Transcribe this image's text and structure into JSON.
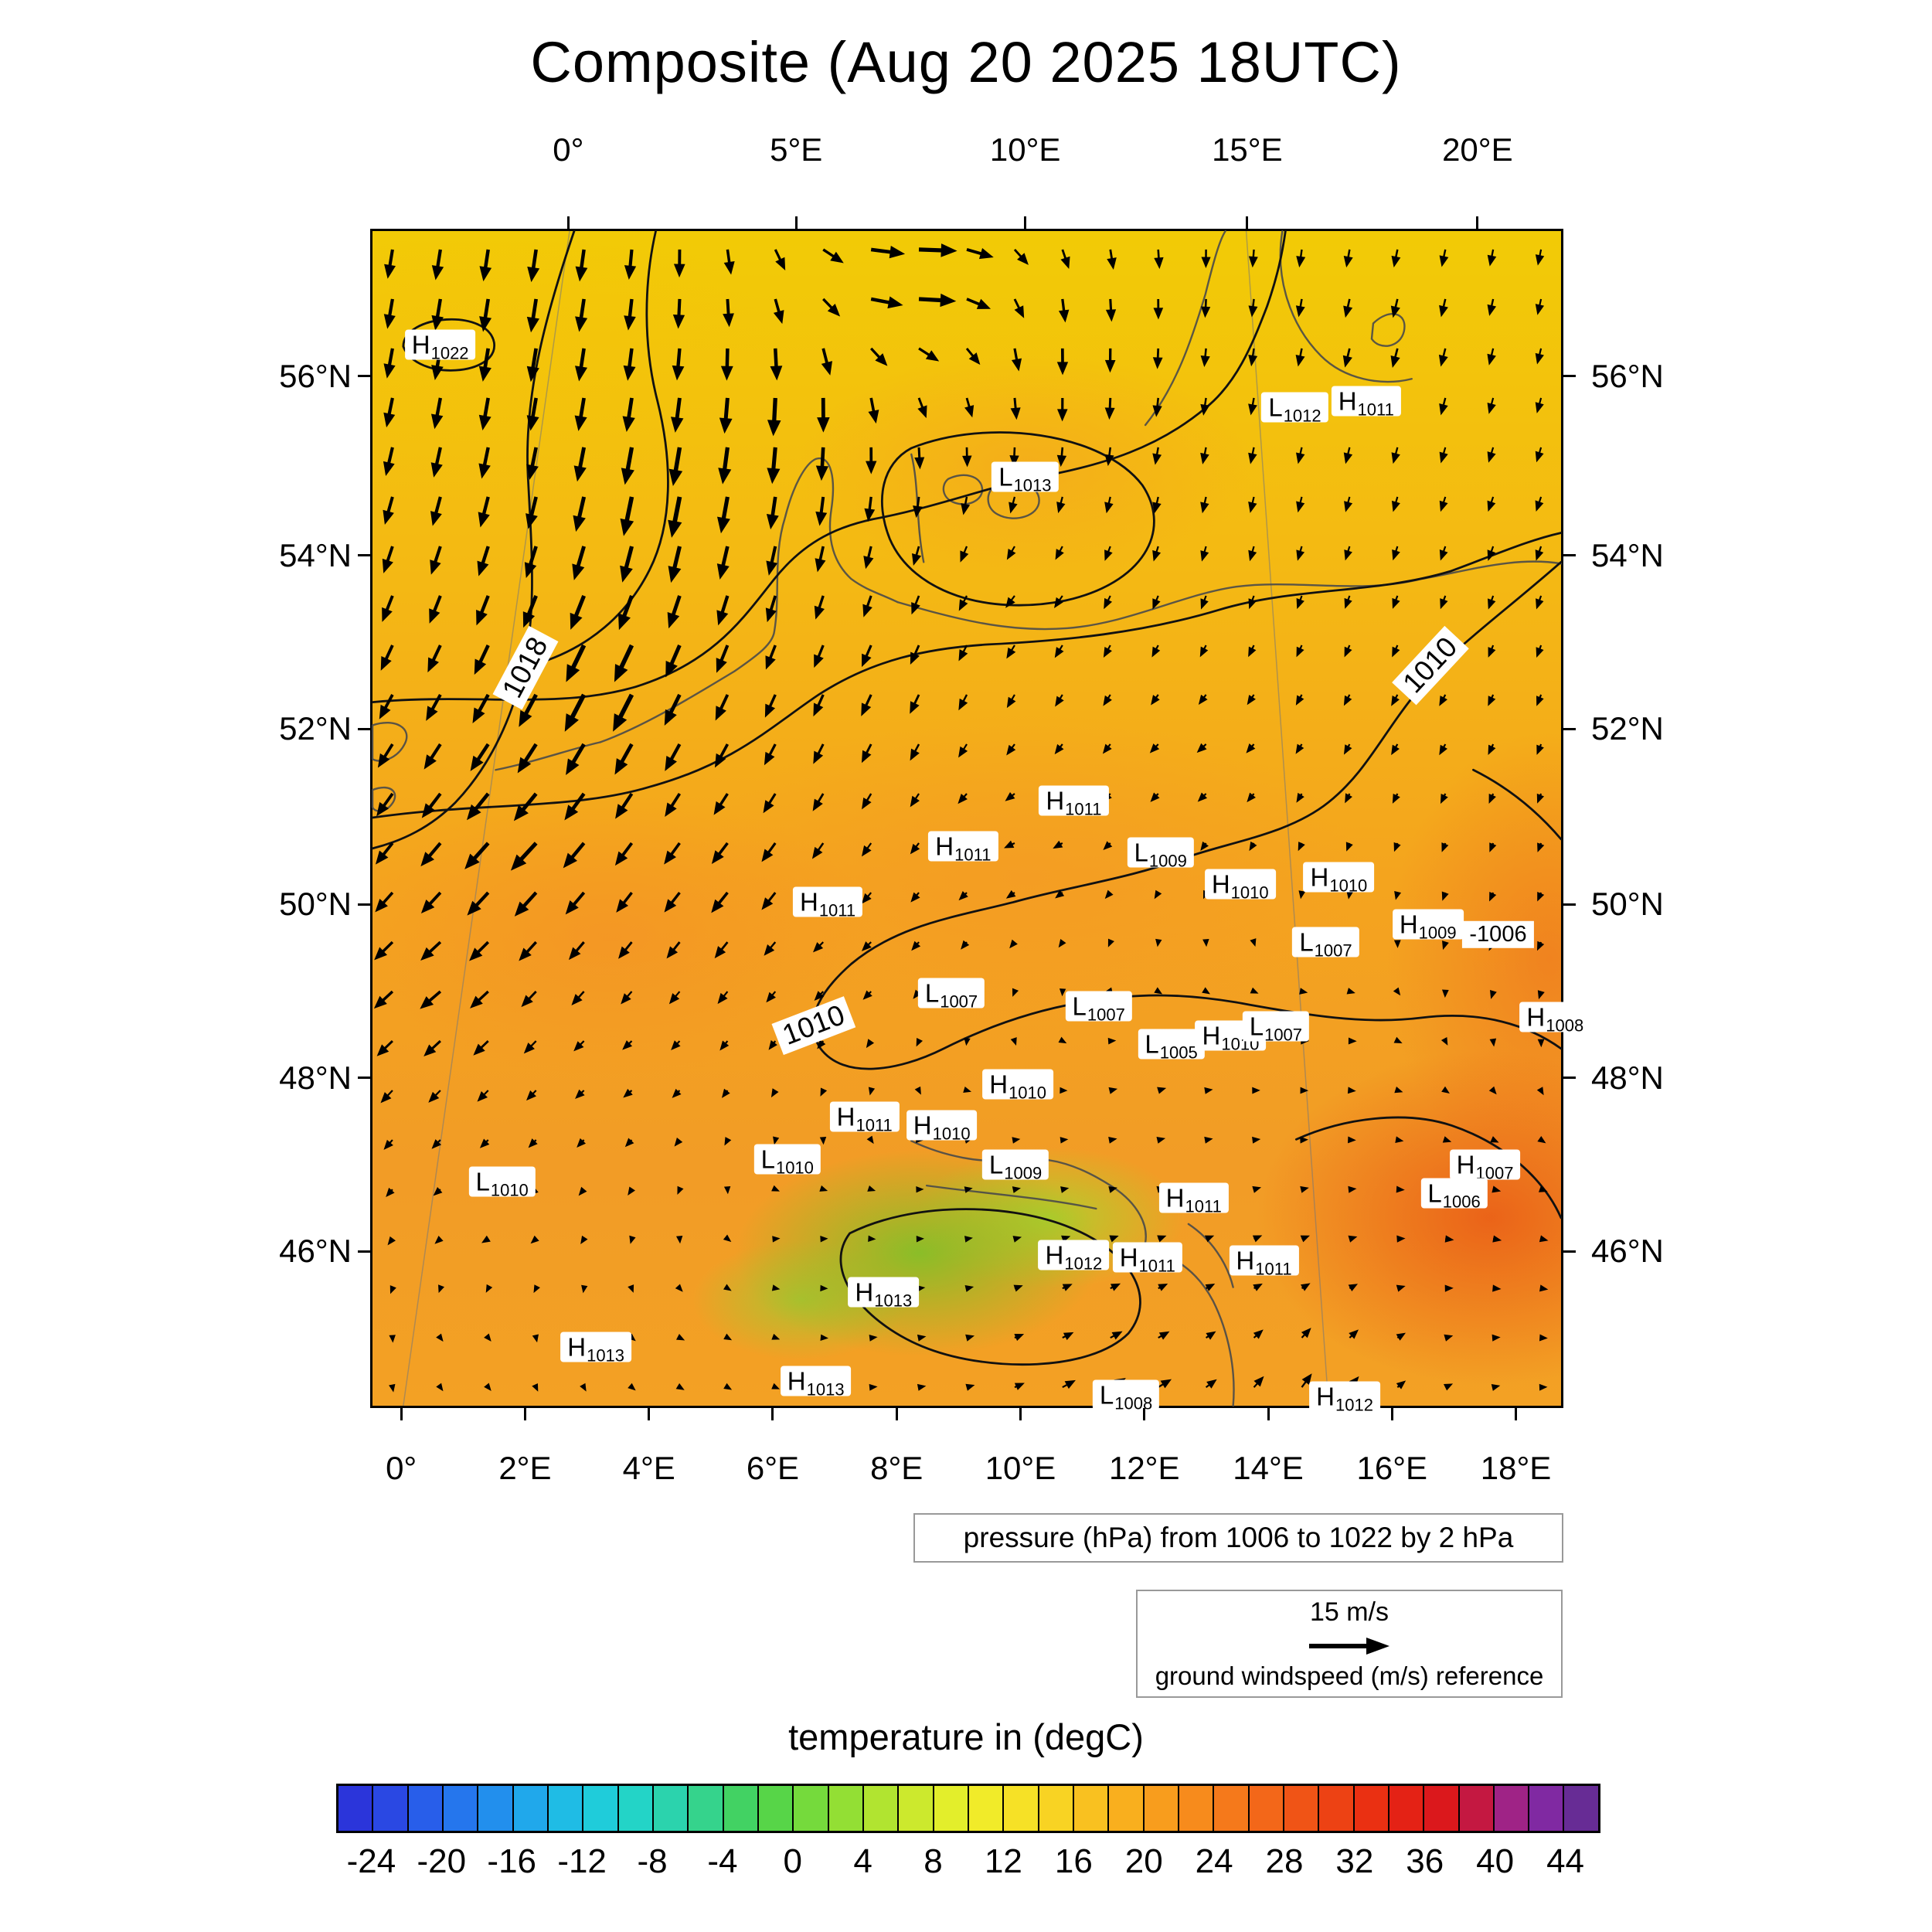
{
  "title": "Composite (Aug 20 2025 18UTC)",
  "axes": {
    "top": [
      {
        "label": "0°",
        "fx": 0.166
      },
      {
        "label": "5°E",
        "fx": 0.357
      },
      {
        "label": "10°E",
        "fx": 0.549
      },
      {
        "label": "15°E",
        "fx": 0.735
      },
      {
        "label": "20°E",
        "fx": 0.928
      }
    ],
    "bottom": [
      {
        "label": "0°",
        "fx": 0.026
      },
      {
        "label": "2°E",
        "fx": 0.1298
      },
      {
        "label": "4°E",
        "fx": 0.2336
      },
      {
        "label": "6°E",
        "fx": 0.3374
      },
      {
        "label": "8°E",
        "fx": 0.4412
      },
      {
        "label": "10°E",
        "fx": 0.545
      },
      {
        "label": "12°E",
        "fx": 0.6488
      },
      {
        "label": "14°E",
        "fx": 0.7526
      },
      {
        "label": "16°E",
        "fx": 0.8564
      },
      {
        "label": "18°E",
        "fx": 0.9602
      }
    ],
    "left": [
      {
        "label": "56°N",
        "fy": 0.125
      },
      {
        "label": "54°N",
        "fy": 0.277
      },
      {
        "label": "52°N",
        "fy": 0.424
      },
      {
        "label": "50°N",
        "fy": 0.573
      },
      {
        "label": "48°N",
        "fy": 0.72
      },
      {
        "label": "46°N",
        "fy": 0.867
      }
    ],
    "right": [
      {
        "label": "56°N",
        "fy": 0.125
      },
      {
        "label": "54°N",
        "fy": 0.277
      },
      {
        "label": "52°N",
        "fy": 0.424
      },
      {
        "label": "50°N",
        "fy": 0.573
      },
      {
        "label": "48°N",
        "fy": 0.72
      },
      {
        "label": "46°N",
        "fy": 0.867
      }
    ]
  },
  "pressure_centers": [
    {
      "t": "H",
      "v": "1022",
      "fx": 0.057,
      "fy": 0.097
    },
    {
      "t": "L",
      "v": "1012",
      "fx": 0.776,
      "fy": 0.15
    },
    {
      "t": "H",
      "v": "1011",
      "fx": 0.836,
      "fy": 0.145
    },
    {
      "t": "L",
      "v": "1013",
      "fx": 0.549,
      "fy": 0.209
    },
    {
      "t": "H",
      "v": "1011",
      "fx": 0.59,
      "fy": 0.485
    },
    {
      "t": "H",
      "v": "1011",
      "fx": 0.497,
      "fy": 0.524
    },
    {
      "t": "L",
      "v": "1009",
      "fx": 0.663,
      "fy": 0.529
    },
    {
      "t": "H",
      "v": "1010",
      "fx": 0.73,
      "fy": 0.556
    },
    {
      "t": "H",
      "v": "1010",
      "fx": 0.813,
      "fy": 0.55
    },
    {
      "t": "H",
      "v": "1011",
      "fx": 0.383,
      "fy": 0.571
    },
    {
      "t": "H",
      "v": "1009",
      "fx": 0.888,
      "fy": 0.59
    },
    {
      "t": "L",
      "v": "1007",
      "fx": 0.802,
      "fy": 0.605
    },
    {
      "t": "L",
      "v": "1007",
      "fx": 0.487,
      "fy": 0.649
    },
    {
      "t": "L",
      "v": "1007",
      "fx": 0.611,
      "fy": 0.66
    },
    {
      "t": "H",
      "v": "1008",
      "fx": 0.995,
      "fy": 0.669
    },
    {
      "t": "L",
      "v": "1005",
      "fx": 0.672,
      "fy": 0.692
    },
    {
      "t": "H",
      "v": "1010",
      "fx": 0.722,
      "fy": 0.685
    },
    {
      "t": "L",
      "v": "1007",
      "fx": 0.76,
      "fy": 0.677
    },
    {
      "t": "H",
      "v": "1010",
      "fx": 0.543,
      "fy": 0.726
    },
    {
      "t": "H",
      "v": "1011",
      "fx": 0.414,
      "fy": 0.754
    },
    {
      "t": "H",
      "v": "1010",
      "fx": 0.479,
      "fy": 0.761
    },
    {
      "t": "L",
      "v": "1010",
      "fx": 0.349,
      "fy": 0.79
    },
    {
      "t": "L",
      "v": "1009",
      "fx": 0.541,
      "fy": 0.795
    },
    {
      "t": "L",
      "v": "1010",
      "fx": 0.109,
      "fy": 0.809
    },
    {
      "t": "H",
      "v": "1011",
      "fx": 0.691,
      "fy": 0.823
    },
    {
      "t": "H",
      "v": "1007",
      "fx": 0.936,
      "fy": 0.795
    },
    {
      "t": "L",
      "v": "1006",
      "fx": 0.91,
      "fy": 0.819
    },
    {
      "t": "H",
      "v": "1012",
      "fx": 0.59,
      "fy": 0.872
    },
    {
      "t": "H",
      "v": "1011",
      "fx": 0.652,
      "fy": 0.874
    },
    {
      "t": "H",
      "v": "1011",
      "fx": 0.75,
      "fy": 0.876
    },
    {
      "t": "H",
      "v": "1013",
      "fx": 0.43,
      "fy": 0.903
    },
    {
      "t": "H",
      "v": "1013",
      "fx": 0.188,
      "fy": 0.95
    },
    {
      "t": "H",
      "v": "1013",
      "fx": 0.373,
      "fy": 0.979
    },
    {
      "t": "L",
      "v": "1008",
      "fx": 0.634,
      "fy": 0.991
    },
    {
      "t": "H",
      "v": "1012",
      "fx": 0.818,
      "fy": 0.992
    }
  ],
  "contour_labels": [
    {
      "text": "1018",
      "fx": 0.129,
      "fy": 0.372,
      "rot": -62,
      "small": false
    },
    {
      "text": "1010",
      "fx": 0.89,
      "fy": 0.37,
      "rot": -47,
      "small": false
    },
    {
      "text": "1010",
      "fx": 0.371,
      "fy": 0.676,
      "rot": -21,
      "small": false
    },
    {
      "text": "-1006",
      "fx": 0.947,
      "fy": 0.599,
      "rot": 0,
      "small": true
    }
  ],
  "pressure_caption": "pressure (hPa) from 1006 to 1022 by 2 hPa",
  "wind_legend": {
    "speed": "15 m/s",
    "caption": "ground windspeed (m/s) reference"
  },
  "colorbar": {
    "title": "temperature in (degC)",
    "vmin": -26,
    "vmax": 46,
    "step": 2,
    "tick_vals": [
      -24,
      -20,
      -16,
      -12,
      -8,
      -4,
      0,
      4,
      8,
      12,
      16,
      20,
      24,
      28,
      32,
      36,
      40,
      44
    ],
    "stops": [
      {
        "v": -26,
        "c": "#2b2bd5"
      },
      {
        "v": -22,
        "c": "#2a52e8"
      },
      {
        "v": -18,
        "c": "#2382ee"
      },
      {
        "v": -14,
        "c": "#1fb4ea"
      },
      {
        "v": -10,
        "c": "#1fd4d4"
      },
      {
        "v": -6,
        "c": "#2fd3a0"
      },
      {
        "v": -2,
        "c": "#48d24e"
      },
      {
        "v": 2,
        "c": "#84dc36"
      },
      {
        "v": 6,
        "c": "#c0e62e"
      },
      {
        "v": 10,
        "c": "#eef02a"
      },
      {
        "v": 14,
        "c": "#f8dc24"
      },
      {
        "v": 18,
        "c": "#f9b81f"
      },
      {
        "v": 22,
        "c": "#f8941c"
      },
      {
        "v": 26,
        "c": "#f4701a"
      },
      {
        "v": 30,
        "c": "#ef4b15"
      },
      {
        "v": 34,
        "c": "#e82711"
      },
      {
        "v": 38,
        "c": "#d6131f"
      },
      {
        "v": 42,
        "c": "#8c28a8"
      },
      {
        "v": 46,
        "c": "#5a2d8f"
      }
    ]
  },
  "wind_grid": {
    "nx": 25,
    "ny": 24
  },
  "wind_controls": [
    [
      0.45,
      0.04,
      62,
      -10
    ],
    [
      0.58,
      0.1,
      -2,
      34
    ],
    [
      0.15,
      0.05,
      -6,
      38
    ],
    [
      0.12,
      0.1,
      -6,
      38
    ],
    [
      0.25,
      0.22,
      -10,
      52
    ],
    [
      0.35,
      0.15,
      -4,
      50
    ],
    [
      0.2,
      0.38,
      -26,
      50
    ],
    [
      0.13,
      0.52,
      -34,
      34
    ],
    [
      0.06,
      0.64,
      -26,
      20
    ],
    [
      0.3,
      0.55,
      -22,
      26
    ],
    [
      0.42,
      0.38,
      -12,
      26
    ],
    [
      0.55,
      0.3,
      -12,
      10
    ],
    [
      0.7,
      0.2,
      -4,
      18
    ],
    [
      0.85,
      0.1,
      -6,
      22
    ],
    [
      0.95,
      0.25,
      -6,
      16
    ],
    [
      0.88,
      0.42,
      -8,
      12
    ],
    [
      0.7,
      0.45,
      -12,
      8
    ],
    [
      0.55,
      0.52,
      -14,
      2
    ],
    [
      0.4,
      0.62,
      -12,
      8
    ],
    [
      0.22,
      0.72,
      -10,
      6
    ],
    [
      0.1,
      0.85,
      -9,
      3
    ],
    [
      0.35,
      0.85,
      6,
      -3
    ],
    [
      0.5,
      0.78,
      8,
      -4
    ],
    [
      0.65,
      0.72,
      11,
      -5
    ],
    [
      0.8,
      0.68,
      10,
      -2
    ],
    [
      0.95,
      0.6,
      -6,
      10
    ],
    [
      0.92,
      0.85,
      10,
      2
    ],
    [
      0.75,
      0.88,
      9,
      -4
    ],
    [
      0.6,
      0.92,
      12,
      -6
    ],
    [
      0.62,
      0.99,
      22,
      -14
    ],
    [
      0.78,
      0.98,
      12,
      -20
    ],
    [
      0.45,
      0.95,
      8,
      -2
    ],
    [
      0.25,
      0.95,
      7,
      2
    ],
    [
      0.08,
      0.95,
      6,
      2
    ]
  ]
}
